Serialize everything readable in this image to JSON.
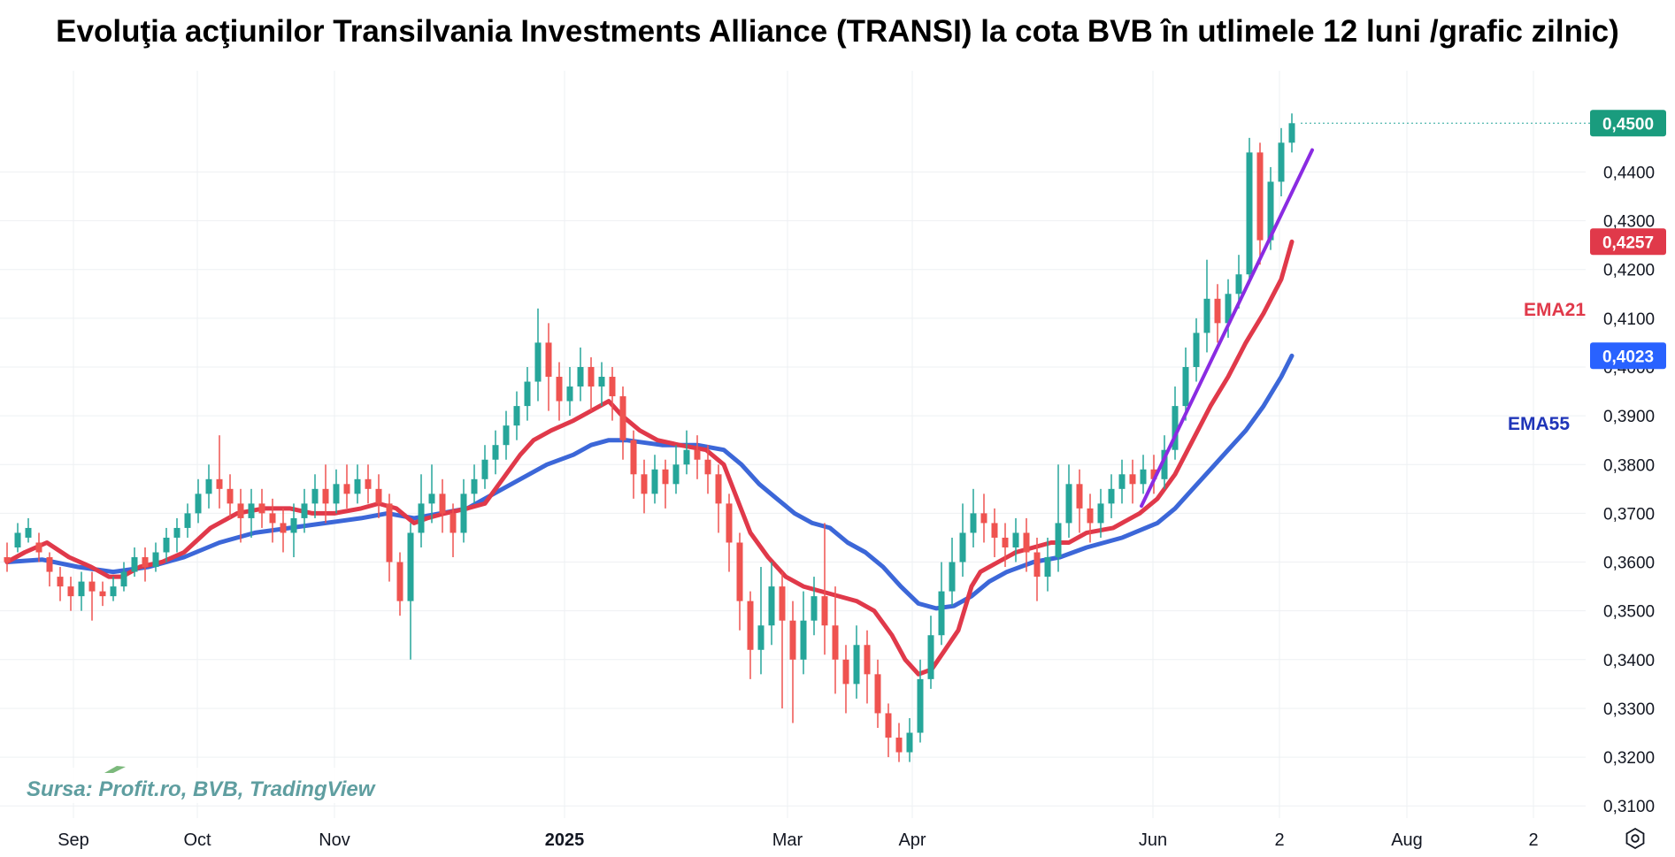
{
  "title": "Evoluţia acţiunilor Transilvania Investments Alliance (TRANSI) la cota BVB în utlimele 12 luni /grafic zilnic)",
  "source": "Sursa: Profit.ro, BVB, TradingView",
  "colors": {
    "up": "#26a69a",
    "down": "#ef5350",
    "ema21": "#e0394a",
    "ema55": "#3c67d8",
    "trendline": "#8a2be2",
    "last_price_tag": "#1a9c7e"
  },
  "icons": {
    "settings": "settings-icon"
  },
  "chart_data": {
    "type": "candlestick",
    "ylim": [
      0.3075,
      0.4535
    ],
    "y_ticks": [
      "0,3100",
      "0,3200",
      "0,3300",
      "0,3400",
      "0,3500",
      "0,3600",
      "0,3700",
      "0,3800",
      "0,3900",
      "0,4000",
      "0,4100",
      "0,4200",
      "0,4300",
      "0,4400"
    ],
    "x_ticks": [
      "Sep",
      "Oct",
      "Nov",
      "2025",
      "Mar",
      "Apr",
      "Jun",
      "2",
      "Aug",
      "2"
    ],
    "bold_x_tick": "2025",
    "last_price": {
      "value": 0.45,
      "label": "0,4500"
    },
    "ema21": {
      "name": "EMA21",
      "last_label": "0,4257",
      "last_value": 0.4257,
      "points": [
        [
          0,
          0.36
        ],
        [
          20,
          0.362
        ],
        [
          45,
          0.364
        ],
        [
          70,
          0.361
        ],
        [
          95,
          0.359
        ],
        [
          115,
          0.357
        ],
        [
          130,
          0.357
        ],
        [
          150,
          0.359
        ],
        [
          175,
          0.36
        ],
        [
          200,
          0.362
        ],
        [
          230,
          0.367
        ],
        [
          260,
          0.37
        ],
        [
          290,
          0.371
        ],
        [
          320,
          0.371
        ],
        [
          345,
          0.37
        ],
        [
          370,
          0.37
        ],
        [
          400,
          0.371
        ],
        [
          420,
          0.372
        ],
        [
          440,
          0.371
        ],
        [
          460,
          0.368
        ],
        [
          475,
          0.369
        ],
        [
          495,
          0.37
        ],
        [
          520,
          0.371
        ],
        [
          540,
          0.372
        ],
        [
          560,
          0.377
        ],
        [
          580,
          0.382
        ],
        [
          595,
          0.385
        ],
        [
          615,
          0.387
        ],
        [
          640,
          0.389
        ],
        [
          660,
          0.391
        ],
        [
          680,
          0.393
        ],
        [
          695,
          0.39
        ],
        [
          715,
          0.387
        ],
        [
          735,
          0.385
        ],
        [
          760,
          0.384
        ],
        [
          790,
          0.383
        ],
        [
          810,
          0.38
        ],
        [
          825,
          0.373
        ],
        [
          840,
          0.366
        ],
        [
          860,
          0.361
        ],
        [
          880,
          0.357
        ],
        [
          900,
          0.355
        ],
        [
          920,
          0.354
        ],
        [
          940,
          0.353
        ],
        [
          960,
          0.352
        ],
        [
          980,
          0.35
        ],
        [
          1000,
          0.345
        ],
        [
          1015,
          0.34
        ],
        [
          1030,
          0.337
        ],
        [
          1045,
          0.338
        ],
        [
          1060,
          0.342
        ],
        [
          1075,
          0.346
        ],
        [
          1090,
          0.355
        ],
        [
          1100,
          0.358
        ],
        [
          1120,
          0.36
        ],
        [
          1140,
          0.362
        ],
        [
          1160,
          0.363
        ],
        [
          1180,
          0.364
        ],
        [
          1200,
          0.364
        ],
        [
          1220,
          0.366
        ],
        [
          1250,
          0.367
        ],
        [
          1280,
          0.37
        ],
        [
          1300,
          0.373
        ],
        [
          1320,
          0.378
        ],
        [
          1340,
          0.385
        ],
        [
          1360,
          0.392
        ],
        [
          1380,
          0.398
        ],
        [
          1400,
          0.405
        ],
        [
          1420,
          0.411
        ],
        [
          1440,
          0.418
        ],
        [
          1452,
          0.4257
        ]
      ]
    },
    "ema55": {
      "name": "EMA55",
      "last_label": "0,4023",
      "last_value": 0.4023,
      "points": [
        [
          0,
          0.36
        ],
        [
          40,
          0.3605
        ],
        [
          80,
          0.359
        ],
        [
          120,
          0.358
        ],
        [
          160,
          0.359
        ],
        [
          200,
          0.361
        ],
        [
          240,
          0.364
        ],
        [
          280,
          0.366
        ],
        [
          320,
          0.367
        ],
        [
          360,
          0.368
        ],
        [
          400,
          0.369
        ],
        [
          430,
          0.37
        ],
        [
          460,
          0.369
        ],
        [
          490,
          0.37
        ],
        [
          520,
          0.371
        ],
        [
          550,
          0.374
        ],
        [
          580,
          0.377
        ],
        [
          610,
          0.38
        ],
        [
          640,
          0.382
        ],
        [
          660,
          0.384
        ],
        [
          680,
          0.385
        ],
        [
          700,
          0.385
        ],
        [
          740,
          0.384
        ],
        [
          780,
          0.384
        ],
        [
          810,
          0.383
        ],
        [
          830,
          0.38
        ],
        [
          850,
          0.376
        ],
        [
          870,
          0.373
        ],
        [
          890,
          0.37
        ],
        [
          910,
          0.368
        ],
        [
          930,
          0.367
        ],
        [
          950,
          0.364
        ],
        [
          970,
          0.362
        ],
        [
          990,
          0.359
        ],
        [
          1010,
          0.355
        ],
        [
          1030,
          0.3515
        ],
        [
          1050,
          0.3505
        ],
        [
          1070,
          0.351
        ],
        [
          1090,
          0.353
        ],
        [
          1110,
          0.356
        ],
        [
          1130,
          0.358
        ],
        [
          1160,
          0.36
        ],
        [
          1190,
          0.361
        ],
        [
          1220,
          0.363
        ],
        [
          1260,
          0.365
        ],
        [
          1300,
          0.368
        ],
        [
          1320,
          0.371
        ],
        [
          1340,
          0.375
        ],
        [
          1360,
          0.379
        ],
        [
          1380,
          0.383
        ],
        [
          1400,
          0.387
        ],
        [
          1420,
          0.392
        ],
        [
          1440,
          0.398
        ],
        [
          1452,
          0.4023
        ]
      ]
    },
    "trendline": {
      "from": [
        1282,
        0.3715
      ],
      "to": [
        1475,
        0.4445
      ]
    },
    "candles": [
      [
        0,
        0.361,
        0.36,
        0.358,
        0.364
      ],
      [
        12,
        0.363,
        0.366,
        0.362,
        0.368
      ],
      [
        24,
        0.365,
        0.367,
        0.364,
        0.369
      ],
      [
        36,
        0.364,
        0.362,
        0.36,
        0.366
      ],
      [
        48,
        0.361,
        0.358,
        0.355,
        0.362
      ],
      [
        60,
        0.357,
        0.355,
        0.352,
        0.359
      ],
      [
        72,
        0.355,
        0.353,
        0.35,
        0.357
      ],
      [
        84,
        0.353,
        0.356,
        0.35,
        0.358
      ],
      [
        96,
        0.356,
        0.354,
        0.348,
        0.358
      ],
      [
        108,
        0.354,
        0.353,
        0.351,
        0.356
      ],
      [
        120,
        0.353,
        0.355,
        0.352,
        0.357
      ],
      [
        132,
        0.355,
        0.358,
        0.354,
        0.36
      ],
      [
        144,
        0.358,
        0.361,
        0.357,
        0.363
      ],
      [
        156,
        0.361,
        0.359,
        0.356,
        0.363
      ],
      [
        168,
        0.359,
        0.362,
        0.358,
        0.364
      ],
      [
        180,
        0.362,
        0.365,
        0.36,
        0.367
      ],
      [
        192,
        0.365,
        0.367,
        0.362,
        0.369
      ],
      [
        204,
        0.367,
        0.37,
        0.365,
        0.372
      ],
      [
        216,
        0.37,
        0.374,
        0.368,
        0.377
      ],
      [
        228,
        0.374,
        0.377,
        0.371,
        0.38
      ],
      [
        240,
        0.377,
        0.375,
        0.371,
        0.386
      ],
      [
        252,
        0.375,
        0.372,
        0.369,
        0.378
      ],
      [
        264,
        0.372,
        0.369,
        0.364,
        0.375
      ],
      [
        276,
        0.369,
        0.372,
        0.365,
        0.375
      ],
      [
        288,
        0.372,
        0.37,
        0.367,
        0.375
      ],
      [
        300,
        0.37,
        0.368,
        0.364,
        0.373
      ],
      [
        312,
        0.368,
        0.366,
        0.362,
        0.371
      ],
      [
        324,
        0.366,
        0.369,
        0.361,
        0.372
      ],
      [
        336,
        0.369,
        0.372,
        0.366,
        0.375
      ],
      [
        348,
        0.372,
        0.375,
        0.369,
        0.378
      ],
      [
        360,
        0.375,
        0.372,
        0.368,
        0.38
      ],
      [
        372,
        0.372,
        0.376,
        0.37,
        0.379
      ],
      [
        384,
        0.376,
        0.374,
        0.371,
        0.38
      ],
      [
        396,
        0.374,
        0.377,
        0.372,
        0.38
      ],
      [
        408,
        0.377,
        0.375,
        0.372,
        0.38
      ],
      [
        420,
        0.375,
        0.372,
        0.369,
        0.378
      ],
      [
        432,
        0.372,
        0.36,
        0.356,
        0.374
      ],
      [
        444,
        0.36,
        0.352,
        0.349,
        0.362
      ],
      [
        456,
        0.352,
        0.366,
        0.34,
        0.368
      ],
      [
        468,
        0.366,
        0.372,
        0.363,
        0.378
      ],
      [
        480,
        0.372,
        0.374,
        0.368,
        0.38
      ],
      [
        492,
        0.374,
        0.37,
        0.366,
        0.377
      ],
      [
        504,
        0.37,
        0.366,
        0.361,
        0.372
      ],
      [
        516,
        0.366,
        0.374,
        0.364,
        0.377
      ],
      [
        528,
        0.374,
        0.377,
        0.372,
        0.38
      ],
      [
        540,
        0.377,
        0.381,
        0.375,
        0.384
      ],
      [
        552,
        0.381,
        0.384,
        0.378,
        0.387
      ],
      [
        564,
        0.384,
        0.388,
        0.381,
        0.391
      ],
      [
        576,
        0.388,
        0.392,
        0.385,
        0.395
      ],
      [
        588,
        0.392,
        0.397,
        0.389,
        0.4
      ],
      [
        600,
        0.397,
        0.405,
        0.393,
        0.412
      ],
      [
        612,
        0.405,
        0.398,
        0.391,
        0.409
      ],
      [
        624,
        0.398,
        0.393,
        0.389,
        0.401
      ],
      [
        636,
        0.393,
        0.396,
        0.39,
        0.4
      ],
      [
        648,
        0.396,
        0.4,
        0.393,
        0.404
      ],
      [
        660,
        0.4,
        0.396,
        0.391,
        0.402
      ],
      [
        672,
        0.396,
        0.398,
        0.392,
        0.401
      ],
      [
        684,
        0.398,
        0.394,
        0.389,
        0.4
      ],
      [
        696,
        0.394,
        0.385,
        0.381,
        0.396
      ],
      [
        708,
        0.385,
        0.378,
        0.373,
        0.387
      ],
      [
        720,
        0.378,
        0.374,
        0.37,
        0.381
      ],
      [
        732,
        0.374,
        0.379,
        0.372,
        0.382
      ],
      [
        744,
        0.379,
        0.376,
        0.371,
        0.381
      ],
      [
        756,
        0.376,
        0.38,
        0.374,
        0.384
      ],
      [
        768,
        0.38,
        0.383,
        0.378,
        0.387
      ],
      [
        780,
        0.383,
        0.381,
        0.377,
        0.386
      ],
      [
        792,
        0.381,
        0.378,
        0.374,
        0.384
      ],
      [
        804,
        0.378,
        0.372,
        0.366,
        0.38
      ],
      [
        816,
        0.372,
        0.364,
        0.358,
        0.374
      ],
      [
        828,
        0.364,
        0.352,
        0.346,
        0.366
      ],
      [
        840,
        0.352,
        0.342,
        0.336,
        0.354
      ],
      [
        852,
        0.342,
        0.347,
        0.337,
        0.359
      ],
      [
        864,
        0.347,
        0.355,
        0.343,
        0.36
      ],
      [
        876,
        0.355,
        0.348,
        0.33,
        0.358
      ],
      [
        888,
        0.348,
        0.34,
        0.327,
        0.352
      ],
      [
        900,
        0.34,
        0.348,
        0.337,
        0.354
      ],
      [
        912,
        0.348,
        0.353,
        0.345,
        0.357
      ],
      [
        924,
        0.353,
        0.347,
        0.341,
        0.368
      ],
      [
        936,
        0.347,
        0.34,
        0.333,
        0.355
      ],
      [
        948,
        0.34,
        0.335,
        0.329,
        0.343
      ],
      [
        960,
        0.335,
        0.343,
        0.332,
        0.347
      ],
      [
        972,
        0.343,
        0.337,
        0.331,
        0.346
      ],
      [
        984,
        0.337,
        0.329,
        0.326,
        0.34
      ],
      [
        996,
        0.329,
        0.324,
        0.32,
        0.331
      ],
      [
        1008,
        0.324,
        0.321,
        0.319,
        0.327
      ],
      [
        1020,
        0.321,
        0.325,
        0.319,
        0.328
      ],
      [
        1032,
        0.325,
        0.336,
        0.323,
        0.34
      ],
      [
        1044,
        0.336,
        0.345,
        0.334,
        0.349
      ],
      [
        1056,
        0.345,
        0.354,
        0.343,
        0.36
      ],
      [
        1068,
        0.354,
        0.36,
        0.351,
        0.365
      ],
      [
        1080,
        0.36,
        0.366,
        0.357,
        0.372
      ],
      [
        1092,
        0.366,
        0.37,
        0.363,
        0.375
      ],
      [
        1104,
        0.37,
        0.368,
        0.364,
        0.374
      ],
      [
        1116,
        0.368,
        0.365,
        0.361,
        0.371
      ],
      [
        1128,
        0.365,
        0.363,
        0.359,
        0.368
      ],
      [
        1140,
        0.363,
        0.366,
        0.36,
        0.369
      ],
      [
        1152,
        0.366,
        0.362,
        0.358,
        0.369
      ],
      [
        1164,
        0.362,
        0.357,
        0.352,
        0.365
      ],
      [
        1176,
        0.357,
        0.361,
        0.354,
        0.365
      ],
      [
        1188,
        0.361,
        0.368,
        0.358,
        0.38
      ],
      [
        1200,
        0.368,
        0.376,
        0.365,
        0.38
      ],
      [
        1212,
        0.376,
        0.371,
        0.366,
        0.379
      ],
      [
        1224,
        0.371,
        0.368,
        0.364,
        0.374
      ],
      [
        1236,
        0.368,
        0.372,
        0.365,
        0.375
      ],
      [
        1248,
        0.372,
        0.375,
        0.369,
        0.378
      ],
      [
        1260,
        0.375,
        0.378,
        0.372,
        0.381
      ],
      [
        1272,
        0.378,
        0.376,
        0.372,
        0.381
      ],
      [
        1284,
        0.376,
        0.379,
        0.374,
        0.382
      ],
      [
        1296,
        0.379,
        0.377,
        0.374,
        0.382
      ],
      [
        1308,
        0.377,
        0.383,
        0.375,
        0.386
      ],
      [
        1320,
        0.383,
        0.392,
        0.381,
        0.396
      ],
      [
        1332,
        0.392,
        0.4,
        0.389,
        0.404
      ],
      [
        1344,
        0.4,
        0.407,
        0.397,
        0.41
      ],
      [
        1356,
        0.407,
        0.414,
        0.403,
        0.422
      ],
      [
        1368,
        0.414,
        0.409,
        0.405,
        0.417
      ],
      [
        1380,
        0.409,
        0.415,
        0.406,
        0.418
      ],
      [
        1392,
        0.415,
        0.419,
        0.412,
        0.423
      ],
      [
        1404,
        0.419,
        0.444,
        0.417,
        0.447
      ],
      [
        1416,
        0.444,
        0.426,
        0.421,
        0.446
      ],
      [
        1428,
        0.426,
        0.438,
        0.424,
        0.441
      ],
      [
        1440,
        0.438,
        0.446,
        0.435,
        0.449
      ],
      [
        1452,
        0.446,
        0.45,
        0.444,
        0.452
      ]
    ]
  }
}
